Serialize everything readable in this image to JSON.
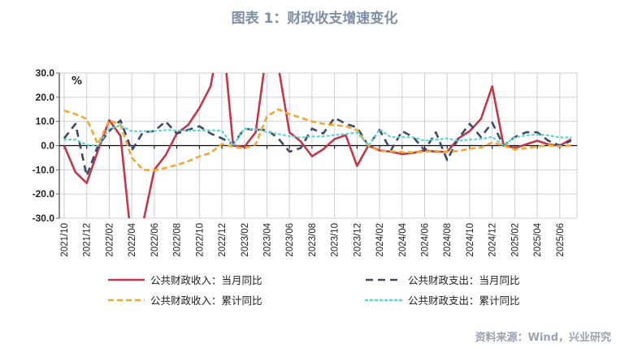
{
  "title": "图表 1：财政收支增速变化",
  "source": "资料来源：Wind，兴业研究",
  "chart_data": {
    "type": "line",
    "unit_label": "%",
    "ylim": [
      -30,
      30
    ],
    "yticks": [
      "30.0",
      "20.0",
      "10.0",
      "0.0",
      "-10.0",
      "-20.0",
      "-30.0"
    ],
    "grid": true,
    "legend_placement": "bottom",
    "x": [
      "2021/10",
      "2021/11",
      "2021/12",
      "2022/01",
      "2022/02",
      "2022/03",
      "2022/04",
      "2022/05",
      "2022/06",
      "2022/07",
      "2022/08",
      "2022/09",
      "2022/10",
      "2022/11",
      "2022/12",
      "2023/01",
      "2023/02",
      "2023/03",
      "2023/04",
      "2023/05",
      "2023/06",
      "2023/07",
      "2023/08",
      "2023/09",
      "2023/10",
      "2023/11",
      "2023/12",
      "2024/01",
      "2024/02",
      "2024/03",
      "2024/04",
      "2024/05",
      "2024/06",
      "2024/07",
      "2024/08",
      "2024/09",
      "2024/10",
      "2024/11",
      "2024/12",
      "2025/01",
      "2025/02",
      "2025/03",
      "2025/04",
      "2025/05",
      "2025/06",
      "2025/07"
    ],
    "xtick_labels": [
      "2021/10",
      "2021/12",
      "2022/02",
      "2022/04",
      "2022/06",
      "2022/08",
      "2022/10",
      "2022/12",
      "2023/02",
      "2023/04",
      "2023/06",
      "2023/08",
      "2023/10",
      "2023/12",
      "2024/02",
      "2024/04",
      "2024/06",
      "2024/08",
      "2024/10",
      "2024/12",
      "2025/02",
      "2025/04",
      "2025/06"
    ],
    "series": [
      {
        "name": "公共财政收入：当月同比",
        "color": "#c0394b",
        "style": "solid",
        "values": [
          0,
          -11,
          -15.5,
          -2,
          10.5,
          4,
          -41,
          -32,
          -10,
          -4,
          5,
          8.5,
          15.5,
          24.5,
          50,
          0,
          -0.5,
          5.5,
          40,
          33,
          5.5,
          1.7,
          -4.4,
          -1.5,
          2.7,
          4.3,
          -8.4,
          0,
          -2,
          -2.5,
          -3.5,
          -3,
          -2,
          -2.5,
          -2.6,
          3,
          6,
          11,
          24.5,
          0.3,
          -1,
          0.5,
          2,
          0.5,
          0,
          2.6
        ]
      },
      {
        "name": "公共财政支出：当月同比",
        "color": "#3c4b66",
        "style": "dash",
        "values": [
          3,
          9,
          -12.5,
          0,
          6,
          10.4,
          -2,
          5.6,
          6,
          10,
          5,
          6.5,
          8,
          5,
          3,
          0.5,
          7,
          6.5,
          6.5,
          3,
          -2.5,
          -1,
          7,
          5,
          11.5,
          9,
          7.5,
          0,
          6.5,
          -2,
          6,
          3.5,
          -2,
          5.5,
          -6,
          3,
          9,
          3.5,
          9.5,
          0,
          3.5,
          5.5,
          5.5,
          2,
          0,
          2
        ]
      },
      {
        "name": "公共财政收入：累计同比",
        "color": "#f0a830",
        "style": "dash-short",
        "values": [
          14.5,
          13,
          11,
          0.5,
          10.5,
          8.5,
          -5,
          -10,
          -10.2,
          -9.2,
          -8,
          -6.5,
          -4.5,
          -3,
          0.6,
          -0.5,
          -1.2,
          0.5,
          12,
          15,
          13,
          11.5,
          10,
          9,
          8.5,
          8,
          6.4,
          0,
          -2.3,
          -2.3,
          -2.7,
          -2.8,
          -2.5,
          -2.2,
          -2.6,
          -2.2,
          -1.3,
          -0.8,
          1.3,
          0,
          -1.6,
          -1.1,
          -0.4,
          0.1,
          -0.3,
          0.1
        ]
      },
      {
        "name": "公共财政支出：累计同比",
        "color": "#5fd3d0",
        "style": "dot",
        "values": [
          2.5,
          2.5,
          0.3,
          0,
          7,
          8.3,
          5.9,
          6,
          6,
          6.4,
          6.3,
          6.2,
          6.2,
          6.4,
          6.1,
          0,
          7,
          6.8,
          5.6,
          4.8,
          3.9,
          3.3,
          3.8,
          3.8,
          4.4,
          4.8,
          5.4,
          0,
          6.7,
          3.5,
          3.5,
          3.4,
          2,
          2.5,
          3,
          2,
          2.5,
          2.7,
          3.6,
          0,
          3.4,
          4.2,
          4.6,
          4.2,
          3.4,
          3.4
        ]
      }
    ]
  }
}
